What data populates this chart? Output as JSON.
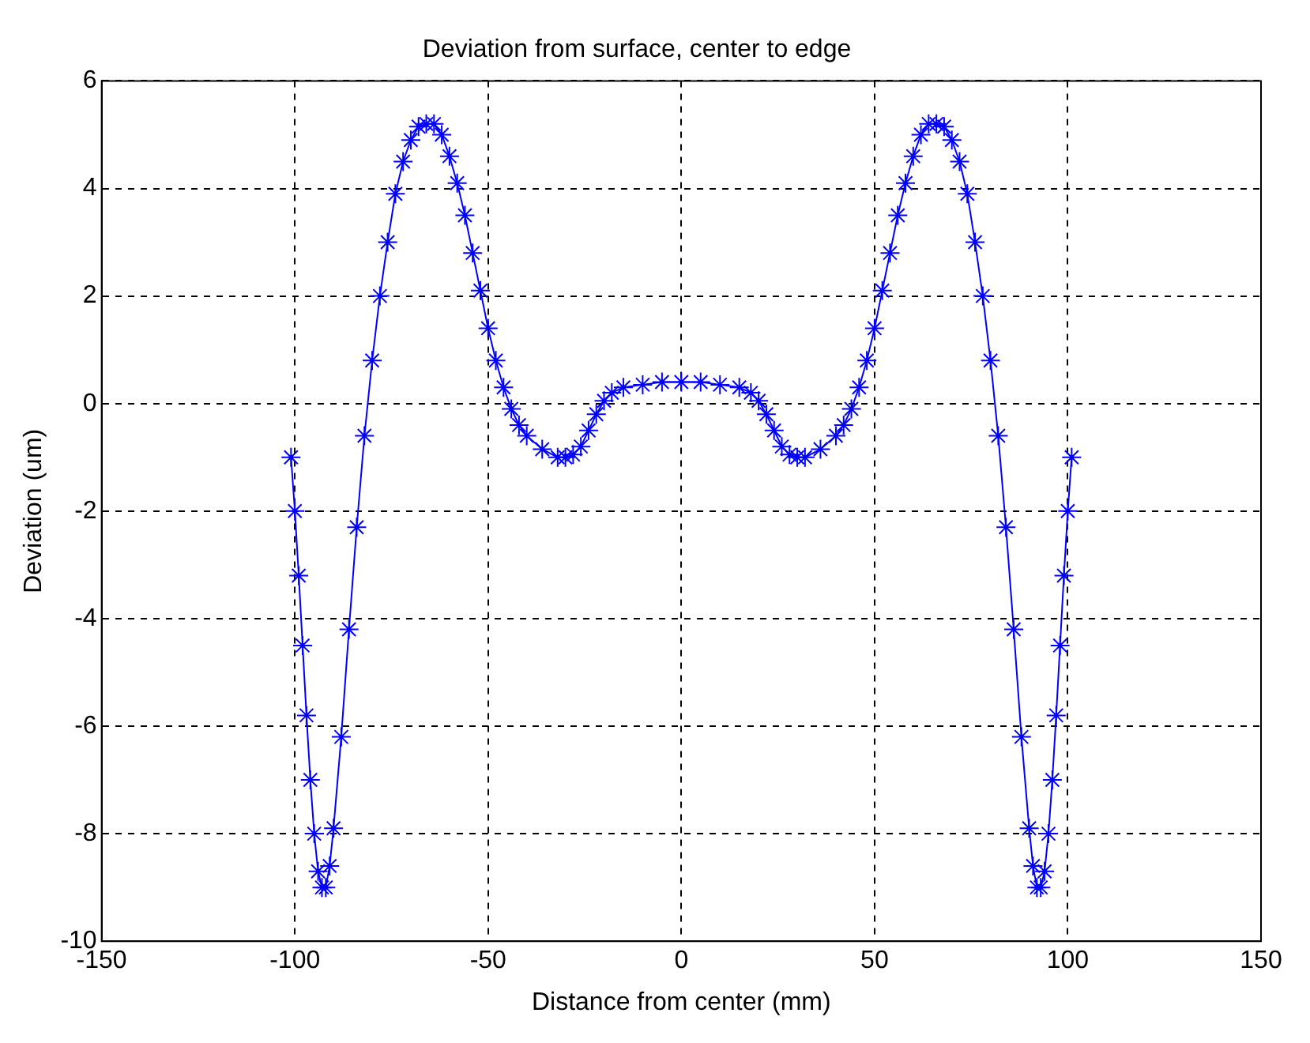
{
  "chart_data": {
    "type": "line",
    "title": "Deviation from surface, center to edge",
    "xlabel": "Distance from center (mm)",
    "ylabel": "Deviation (um)",
    "x": [
      -101,
      -100,
      -99,
      -98,
      -97,
      -96,
      -95,
      -94,
      -93,
      -92,
      -91,
      -90,
      -88,
      -86,
      -84,
      -82,
      -80,
      -78,
      -76,
      -74,
      -72,
      -70,
      -68,
      -66,
      -64,
      -62,
      -60,
      -58,
      -56,
      -54,
      -52,
      -50,
      -48,
      -46,
      -44,
      -42,
      -40,
      -36,
      -32,
      -30,
      -28,
      -26,
      -24,
      -22,
      -20,
      -18,
      -15,
      -10,
      -5,
      0,
      5,
      10,
      15,
      18,
      20,
      22,
      24,
      26,
      28,
      30,
      32,
      36,
      40,
      42,
      44,
      46,
      48,
      50,
      52,
      54,
      56,
      58,
      60,
      62,
      64,
      66,
      68,
      70,
      72,
      74,
      76,
      78,
      80,
      82,
      84,
      86,
      88,
      90,
      91,
      92,
      93,
      94,
      95,
      96,
      97,
      98,
      99,
      100,
      101
    ],
    "series": [
      {
        "color": "#0000ff",
        "values": [
          -1.0,
          -2.0,
          -3.2,
          -4.5,
          -5.8,
          -7.0,
          -8.0,
          -8.7,
          -9.0,
          -9.0,
          -8.6,
          -7.9,
          -6.2,
          -4.2,
          -2.3,
          -0.6,
          0.8,
          2.0,
          3.0,
          3.9,
          4.5,
          4.9,
          5.15,
          5.2,
          5.2,
          5.0,
          4.6,
          4.1,
          3.5,
          2.8,
          2.1,
          1.4,
          0.8,
          0.3,
          -0.1,
          -0.4,
          -0.6,
          -0.85,
          -1.0,
          -1.0,
          -0.95,
          -0.8,
          -0.5,
          -0.2,
          0.05,
          0.2,
          0.3,
          0.35,
          0.4,
          0.4,
          0.4,
          0.35,
          0.3,
          0.2,
          0.05,
          -0.2,
          -0.5,
          -0.8,
          -0.95,
          -1.0,
          -1.0,
          -0.85,
          -0.6,
          -0.4,
          -0.1,
          0.3,
          0.8,
          1.4,
          2.1,
          2.8,
          3.5,
          4.1,
          4.6,
          5.0,
          5.2,
          5.2,
          5.15,
          4.9,
          4.5,
          3.9,
          3.0,
          2.0,
          0.8,
          -0.6,
          -2.3,
          -4.2,
          -6.2,
          -7.9,
          -8.6,
          -9.0,
          -9.0,
          -8.7,
          -8.0,
          -7.0,
          -5.8,
          -4.5,
          -3.2,
          -2.0,
          -1.0
        ]
      }
    ],
    "xlim": [
      -150,
      150
    ],
    "xticks": [
      -150,
      -100,
      -50,
      0,
      50,
      100,
      150
    ],
    "ylim": [
      -10,
      6
    ],
    "yticks": [
      -10,
      -8,
      -6,
      -4,
      -2,
      0,
      2,
      4,
      6
    ],
    "grid": true,
    "marker": "cross",
    "line_style": "solid",
    "legend": false
  }
}
